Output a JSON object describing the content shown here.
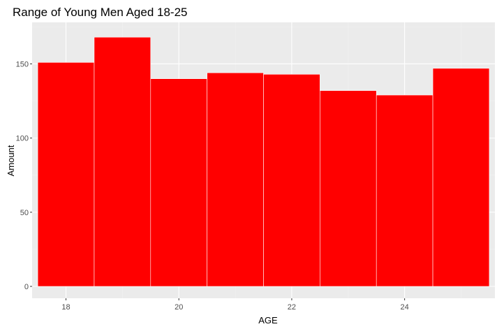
{
  "chart_data": {
    "type": "bar",
    "title": "Range of Young Men Aged 18-25",
    "xlabel": "AGE",
    "ylabel": "Amount",
    "x_ticks": [
      18,
      20,
      22,
      24
    ],
    "y_ticks": [
      0,
      50,
      100,
      150
    ],
    "xlim": [
      17.4,
      25.6
    ],
    "ylim": [
      -8,
      178
    ],
    "bins": [
      {
        "x_start": 17.5,
        "x_end": 18.5,
        "value": 151
      },
      {
        "x_start": 18.5,
        "x_end": 19.5,
        "value": 168
      },
      {
        "x_start": 19.5,
        "x_end": 20.5,
        "value": 140
      },
      {
        "x_start": 20.5,
        "x_end": 21.5,
        "value": 144
      },
      {
        "x_start": 21.5,
        "x_end": 22.5,
        "value": 143
      },
      {
        "x_start": 22.5,
        "x_end": 23.5,
        "value": 132
      },
      {
        "x_start": 23.5,
        "x_end": 24.5,
        "value": 129
      },
      {
        "x_start": 24.5,
        "x_end": 25.5,
        "value": 147
      }
    ],
    "grid": true,
    "legend": "none",
    "colors": {
      "bar_fill": "#ff0000",
      "bar_stroke": "#ffffff",
      "panel_bg": "#ebebeb",
      "grid_major": "#ffffff",
      "grid_minor": "#f2f2f2",
      "tick_text": "#4d4d4d"
    }
  }
}
